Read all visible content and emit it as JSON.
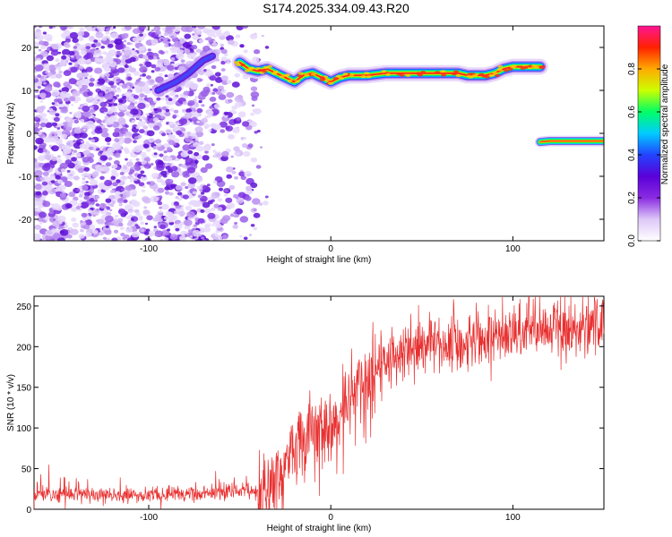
{
  "title": "S174.2025.334.09.43.R20",
  "chart_data": [
    {
      "type": "heatmap",
      "xlabel": "Height of straight line (km)",
      "ylabel": "Frequency (Hz)",
      "xlim": [
        -163,
        150
      ],
      "ylim": [
        -25,
        25
      ],
      "xticks": [
        -100,
        0,
        100
      ],
      "yticks": [
        -20,
        -10,
        0,
        10,
        20
      ],
      "colorbar": {
        "label": "Normalized spectral amplitude",
        "range": [
          0,
          1
        ],
        "ticks": [
          0.0,
          0.2,
          0.4,
          0.6,
          0.8
        ],
        "colors": [
          "#ffffff",
          "#ddc8f8",
          "#8a2be2",
          "#5a00d8",
          "#2244ff",
          "#00ccff",
          "#00ff66",
          "#ccff00",
          "#ffaa00",
          "#ff2200",
          "#ff1493"
        ]
      },
      "noise_region": {
        "x_range": [
          -163,
          -35
        ],
        "freq_range": [
          -25,
          25
        ]
      },
      "ridge_upper": [
        [
          -50,
          16.5
        ],
        [
          -45,
          15
        ],
        [
          -40,
          14.5
        ],
        [
          -35,
          15
        ],
        [
          -30,
          14
        ],
        [
          -25,
          13
        ],
        [
          -20,
          12
        ],
        [
          -15,
          13.5
        ],
        [
          -10,
          14
        ],
        [
          -5,
          13
        ],
        [
          0,
          12
        ],
        [
          5,
          13
        ],
        [
          10,
          13.5
        ],
        [
          20,
          13.5
        ],
        [
          30,
          14
        ],
        [
          40,
          14
        ],
        [
          50,
          14
        ],
        [
          60,
          14
        ],
        [
          70,
          14
        ],
        [
          75,
          13.5
        ],
        [
          80,
          13.5
        ],
        [
          85,
          13.5
        ],
        [
          90,
          14
        ],
        [
          95,
          15
        ],
        [
          100,
          15.5
        ],
        [
          105,
          15.5
        ],
        [
          110,
          15.5
        ],
        [
          115,
          15.5
        ]
      ],
      "ridge_lower": [
        [
          115,
          -2
        ],
        [
          120,
          -1.8
        ],
        [
          130,
          -1.8
        ],
        [
          140,
          -1.8
        ],
        [
          150,
          -1.8
        ]
      ],
      "rising_streak": [
        [
          -95,
          10
        ],
        [
          -85,
          12
        ],
        [
          -78,
          14
        ],
        [
          -70,
          17
        ],
        [
          -65,
          18
        ]
      ]
    },
    {
      "type": "line",
      "xlabel": "Height of straight line (km)",
      "ylabel": "SNR (10 * v/v)",
      "xlim": [
        -163,
        150
      ],
      "ylim": [
        0,
        262
      ],
      "xticks": [
        -100,
        0,
        100
      ],
      "yticks": [
        0,
        50,
        100,
        150,
        200,
        250
      ],
      "line_color": "#e83030",
      "series": [
        {
          "x": [
            -163,
            -140,
            -120,
            -100,
            -80,
            -60,
            -50,
            -45,
            -40,
            -35,
            -30,
            -25,
            -20,
            -15,
            -10,
            -5,
            0,
            5,
            10,
            15,
            20,
            25,
            30,
            40,
            50,
            60,
            70,
            80,
            90,
            100,
            110,
            120,
            130,
            140,
            150
          ],
          "y": [
            18,
            18,
            18,
            18,
            19,
            20,
            22,
            23,
            22,
            25,
            45,
            60,
            75,
            85,
            95,
            100,
            110,
            125,
            135,
            150,
            165,
            175,
            182,
            190,
            195,
            200,
            205,
            208,
            212,
            215,
            218,
            220,
            222,
            224,
            228
          ]
        }
      ]
    }
  ]
}
